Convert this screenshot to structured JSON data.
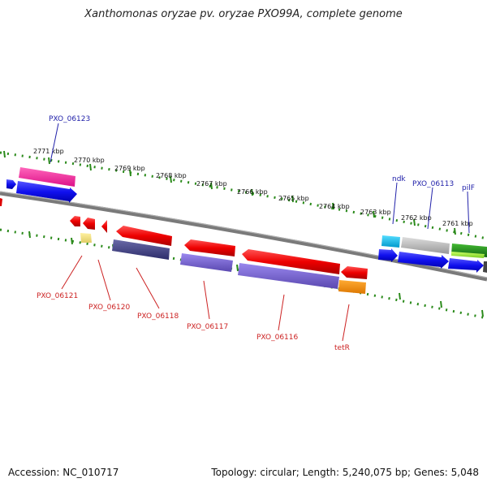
{
  "title": "Xanthomonas oryzae pv. oryzae PXO99A, complete genome",
  "footer": {
    "accession": "Accession: NC_010717",
    "topology": "Topology: circular; Length: 5,240,075 bp; Genes: 5,048"
  },
  "scale_labels": [
    "2771 kbp",
    "2770 kbp",
    "2769 kbp",
    "2768 kbp",
    "2767 kbp",
    "2766 kbp",
    "2765 kbp",
    "2764 kbp",
    "2763 kbp",
    "2762 kbp",
    "2761 kbp"
  ],
  "genes_upper": [
    {
      "name": "PXO_06123",
      "color": "blue"
    },
    {
      "name": "ndk",
      "color": "blue"
    },
    {
      "name": "PXO_06113",
      "color": "blue"
    },
    {
      "name": "pilF",
      "color": "blue"
    }
  ],
  "genes_lower": [
    {
      "name": "PXO_06121",
      "color": "red"
    },
    {
      "name": "PXO_06120",
      "color": "red"
    },
    {
      "name": "PXO_06118",
      "color": "red"
    },
    {
      "name": "PXO_06117",
      "color": "red"
    },
    {
      "name": "PXO_06116",
      "color": "red"
    },
    {
      "name": "tetR",
      "color": "red"
    }
  ],
  "colors": {
    "tick": "#2a8a1a",
    "backbone": "#7a7a7a",
    "label_blue": "#2222aa",
    "label_red": "#cc2222"
  }
}
